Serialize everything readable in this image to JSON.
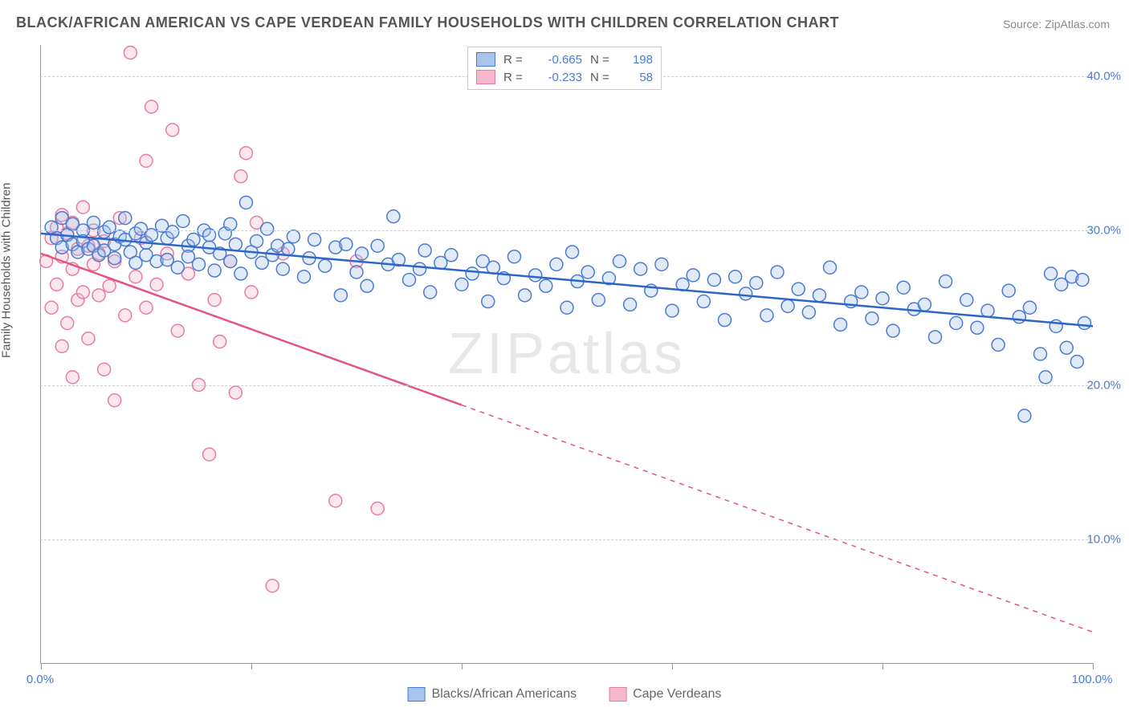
{
  "title": "BLACK/AFRICAN AMERICAN VS CAPE VERDEAN FAMILY HOUSEHOLDS WITH CHILDREN CORRELATION CHART",
  "source": "Source: ZipAtlas.com",
  "watermark": "ZIPatlas",
  "ylabel": "Family Households with Children",
  "chart": {
    "type": "scatter-with-regression",
    "xlim": [
      0,
      100
    ],
    "ylim": [
      2,
      42
    ],
    "background_color": "#ffffff",
    "grid_color": "#cccccc",
    "grid_dash": true,
    "axis_color": "#999999",
    "marker_radius": 8,
    "marker_stroke_width": 1.5,
    "marker_fill_opacity": 0.35,
    "line_width": 2.5,
    "yticks": [
      {
        "value": 10,
        "label": "10.0%"
      },
      {
        "value": 20,
        "label": "20.0%"
      },
      {
        "value": 30,
        "label": "30.0%"
      },
      {
        "value": 40,
        "label": "40.0%"
      }
    ],
    "xticks_major": [
      0,
      20,
      40,
      60,
      80,
      100
    ],
    "xlabels": [
      {
        "value": 0,
        "label": "0.0%"
      },
      {
        "value": 100,
        "label": "100.0%"
      }
    ],
    "tick_label_color": "#4a7bd0",
    "tick_label_fontsize": 15
  },
  "series": {
    "blue": {
      "label": "Blacks/African Americans",
      "R": "-0.665",
      "N": "198",
      "color_stroke": "#4a7bd0",
      "color_fill": "#a7c4ec",
      "line_color": "#2d66c9",
      "regression": {
        "x1": 0,
        "y1": 29.8,
        "x2": 100,
        "y2": 23.8
      },
      "points": [
        [
          1,
          30.2
        ],
        [
          1.5,
          29.5
        ],
        [
          2,
          30.8
        ],
        [
          2,
          28.9
        ],
        [
          2.5,
          29.7
        ],
        [
          3,
          30.4
        ],
        [
          3,
          29.1
        ],
        [
          3.5,
          28.6
        ],
        [
          4,
          30.0
        ],
        [
          4,
          29.3
        ],
        [
          4.5,
          28.8
        ],
        [
          5,
          30.5
        ],
        [
          5,
          29.0
        ],
        [
          5.5,
          28.4
        ],
        [
          6,
          29.9
        ],
        [
          6,
          28.7
        ],
        [
          6.5,
          30.2
        ],
        [
          7,
          29.1
        ],
        [
          7,
          28.2
        ],
        [
          7.5,
          29.6
        ],
        [
          8,
          30.8
        ],
        [
          8,
          29.4
        ],
        [
          8.5,
          28.6
        ],
        [
          9,
          29.8
        ],
        [
          9,
          27.9
        ],
        [
          9.5,
          30.1
        ],
        [
          10,
          29.2
        ],
        [
          10,
          28.4
        ],
        [
          10.5,
          29.7
        ],
        [
          11,
          28.0
        ],
        [
          11.5,
          30.3
        ],
        [
          12,
          29.5
        ],
        [
          12,
          28.1
        ],
        [
          12.5,
          29.9
        ],
        [
          13,
          27.6
        ],
        [
          13.5,
          30.6
        ],
        [
          14,
          29.0
        ],
        [
          14,
          28.3
        ],
        [
          14.5,
          29.4
        ],
        [
          15,
          27.8
        ],
        [
          15.5,
          30.0
        ],
        [
          16,
          28.9
        ],
        [
          16,
          29.7
        ],
        [
          16.5,
          27.4
        ],
        [
          17,
          28.5
        ],
        [
          17.5,
          29.8
        ],
        [
          18,
          30.4
        ],
        [
          18,
          28.0
        ],
        [
          18.5,
          29.1
        ],
        [
          19,
          27.2
        ],
        [
          19.5,
          31.8
        ],
        [
          20,
          28.6
        ],
        [
          20.5,
          29.3
        ],
        [
          21,
          27.9
        ],
        [
          21.5,
          30.1
        ],
        [
          22,
          28.4
        ],
        [
          22.5,
          29.0
        ],
        [
          23,
          27.5
        ],
        [
          23.5,
          28.8
        ],
        [
          24,
          29.6
        ],
        [
          25,
          27.0
        ],
        [
          25.5,
          28.2
        ],
        [
          26,
          29.4
        ],
        [
          27,
          27.7
        ],
        [
          28,
          28.9
        ],
        [
          28.5,
          25.8
        ],
        [
          29,
          29.1
        ],
        [
          30,
          27.3
        ],
        [
          30.5,
          28.5
        ],
        [
          31,
          26.4
        ],
        [
          32,
          29.0
        ],
        [
          33,
          27.8
        ],
        [
          33.5,
          30.9
        ],
        [
          34,
          28.1
        ],
        [
          35,
          26.8
        ],
        [
          36,
          27.5
        ],
        [
          36.5,
          28.7
        ],
        [
          37,
          26.0
        ],
        [
          38,
          27.9
        ],
        [
          39,
          28.4
        ],
        [
          40,
          26.5
        ],
        [
          41,
          27.2
        ],
        [
          42,
          28.0
        ],
        [
          42.5,
          25.4
        ],
        [
          43,
          27.6
        ],
        [
          44,
          26.9
        ],
        [
          45,
          28.3
        ],
        [
          46,
          25.8
        ],
        [
          47,
          27.1
        ],
        [
          48,
          26.4
        ],
        [
          49,
          27.8
        ],
        [
          50,
          25.0
        ],
        [
          50.5,
          28.6
        ],
        [
          51,
          26.7
        ],
        [
          52,
          27.3
        ],
        [
          53,
          25.5
        ],
        [
          54,
          26.9
        ],
        [
          55,
          28.0
        ],
        [
          56,
          25.2
        ],
        [
          57,
          27.5
        ],
        [
          58,
          26.1
        ],
        [
          59,
          27.8
        ],
        [
          60,
          24.8
        ],
        [
          61,
          26.5
        ],
        [
          62,
          27.1
        ],
        [
          63,
          25.4
        ],
        [
          64,
          26.8
        ],
        [
          65,
          24.2
        ],
        [
          66,
          27.0
        ],
        [
          67,
          25.9
        ],
        [
          68,
          26.6
        ],
        [
          69,
          24.5
        ],
        [
          70,
          27.3
        ],
        [
          71,
          25.1
        ],
        [
          72,
          26.2
        ],
        [
          73,
          24.7
        ],
        [
          74,
          25.8
        ],
        [
          75,
          27.6
        ],
        [
          76,
          23.9
        ],
        [
          77,
          25.4
        ],
        [
          78,
          26.0
        ],
        [
          79,
          24.3
        ],
        [
          80,
          25.6
        ],
        [
          81,
          23.5
        ],
        [
          82,
          26.3
        ],
        [
          83,
          24.9
        ],
        [
          84,
          25.2
        ],
        [
          85,
          23.1
        ],
        [
          86,
          26.7
        ],
        [
          87,
          24.0
        ],
        [
          88,
          25.5
        ],
        [
          89,
          23.7
        ],
        [
          90,
          24.8
        ],
        [
          91,
          22.6
        ],
        [
          92,
          26.1
        ],
        [
          93,
          24.4
        ],
        [
          93.5,
          18.0
        ],
        [
          94,
          25.0
        ],
        [
          95,
          22.0
        ],
        [
          95.5,
          20.5
        ],
        [
          96,
          27.2
        ],
        [
          96.5,
          23.8
        ],
        [
          97,
          26.5
        ],
        [
          97.5,
          22.4
        ],
        [
          98,
          27.0
        ],
        [
          98.5,
          21.5
        ],
        [
          99,
          26.8
        ],
        [
          99.2,
          24.0
        ]
      ]
    },
    "pink": {
      "label": "Cape Verdeans",
      "R": "-0.233",
      "N": "58",
      "color_stroke": "#e87ba0",
      "color_fill": "#f5b9cd",
      "line_color": "#e55384",
      "regression": {
        "x1": 0,
        "y1": 28.5,
        "x2": 100,
        "y2": 4.0
      },
      "regression_solid_until_x": 40,
      "points": [
        [
          0.5,
          28.0
        ],
        [
          1,
          29.5
        ],
        [
          1,
          25.0
        ],
        [
          1.5,
          30.2
        ],
        [
          1.5,
          26.5
        ],
        [
          2,
          31.0
        ],
        [
          2,
          28.3
        ],
        [
          2,
          22.5
        ],
        [
          2.5,
          29.8
        ],
        [
          2.5,
          24.0
        ],
        [
          3,
          27.5
        ],
        [
          3,
          30.5
        ],
        [
          3,
          20.5
        ],
        [
          3.5,
          28.8
        ],
        [
          3.5,
          25.5
        ],
        [
          4,
          31.5
        ],
        [
          4,
          26.0
        ],
        [
          4.5,
          29.0
        ],
        [
          4.5,
          23.0
        ],
        [
          5,
          27.8
        ],
        [
          5,
          30.0
        ],
        [
          5.5,
          25.8
        ],
        [
          5.5,
          28.5
        ],
        [
          6,
          21.0
        ],
        [
          6,
          29.3
        ],
        [
          6.5,
          26.4
        ],
        [
          7,
          28.0
        ],
        [
          7,
          19.0
        ],
        [
          7.5,
          30.8
        ],
        [
          8,
          24.5
        ],
        [
          8.5,
          41.5
        ],
        [
          9,
          27.0
        ],
        [
          9.5,
          29.5
        ],
        [
          10,
          34.5
        ],
        [
          10,
          25.0
        ],
        [
          10.5,
          38.0
        ],
        [
          11,
          26.5
        ],
        [
          12,
          28.5
        ],
        [
          12.5,
          36.5
        ],
        [
          13,
          23.5
        ],
        [
          14,
          27.2
        ],
        [
          15,
          20.0
        ],
        [
          16,
          15.5
        ],
        [
          16.5,
          25.5
        ],
        [
          17,
          22.8
        ],
        [
          18,
          28.0
        ],
        [
          18.5,
          19.5
        ],
        [
          19,
          33.5
        ],
        [
          19.5,
          35.0
        ],
        [
          20,
          26.0
        ],
        [
          20.5,
          30.5
        ],
        [
          22,
          7.0
        ],
        [
          23,
          28.5
        ],
        [
          28,
          12.5
        ],
        [
          30,
          28.0
        ],
        [
          32,
          12.0
        ]
      ]
    }
  }
}
